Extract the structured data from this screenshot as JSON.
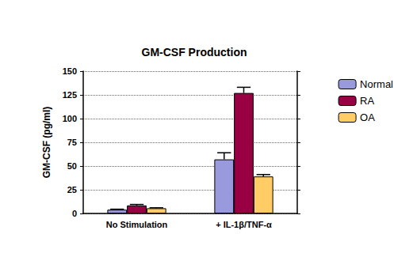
{
  "chart_data": {
    "type": "bar",
    "title": "GM-CSF Production",
    "y_label": "GM-CSF (pg/ml)",
    "categories": [
      "No Stimulation",
      "+ IL-1β/TNF-α"
    ],
    "series": [
      {
        "name": "Normal",
        "color": "#9999dd",
        "values": [
          4,
          57
        ],
        "error": [
          0.5,
          7
        ]
      },
      {
        "name": "RA",
        "color": "#990044",
        "values": [
          8.5,
          127
        ],
        "error": [
          1,
          6
        ]
      },
      {
        "name": "OA",
        "color": "#ffcc66",
        "values": [
          5.5,
          39
        ],
        "error": [
          0.5,
          2
        ]
      }
    ],
    "ylim": [
      0,
      150
    ],
    "yticks": [
      0,
      25,
      50,
      75,
      100,
      125,
      150
    ],
    "grid": true,
    "legend": "right"
  }
}
